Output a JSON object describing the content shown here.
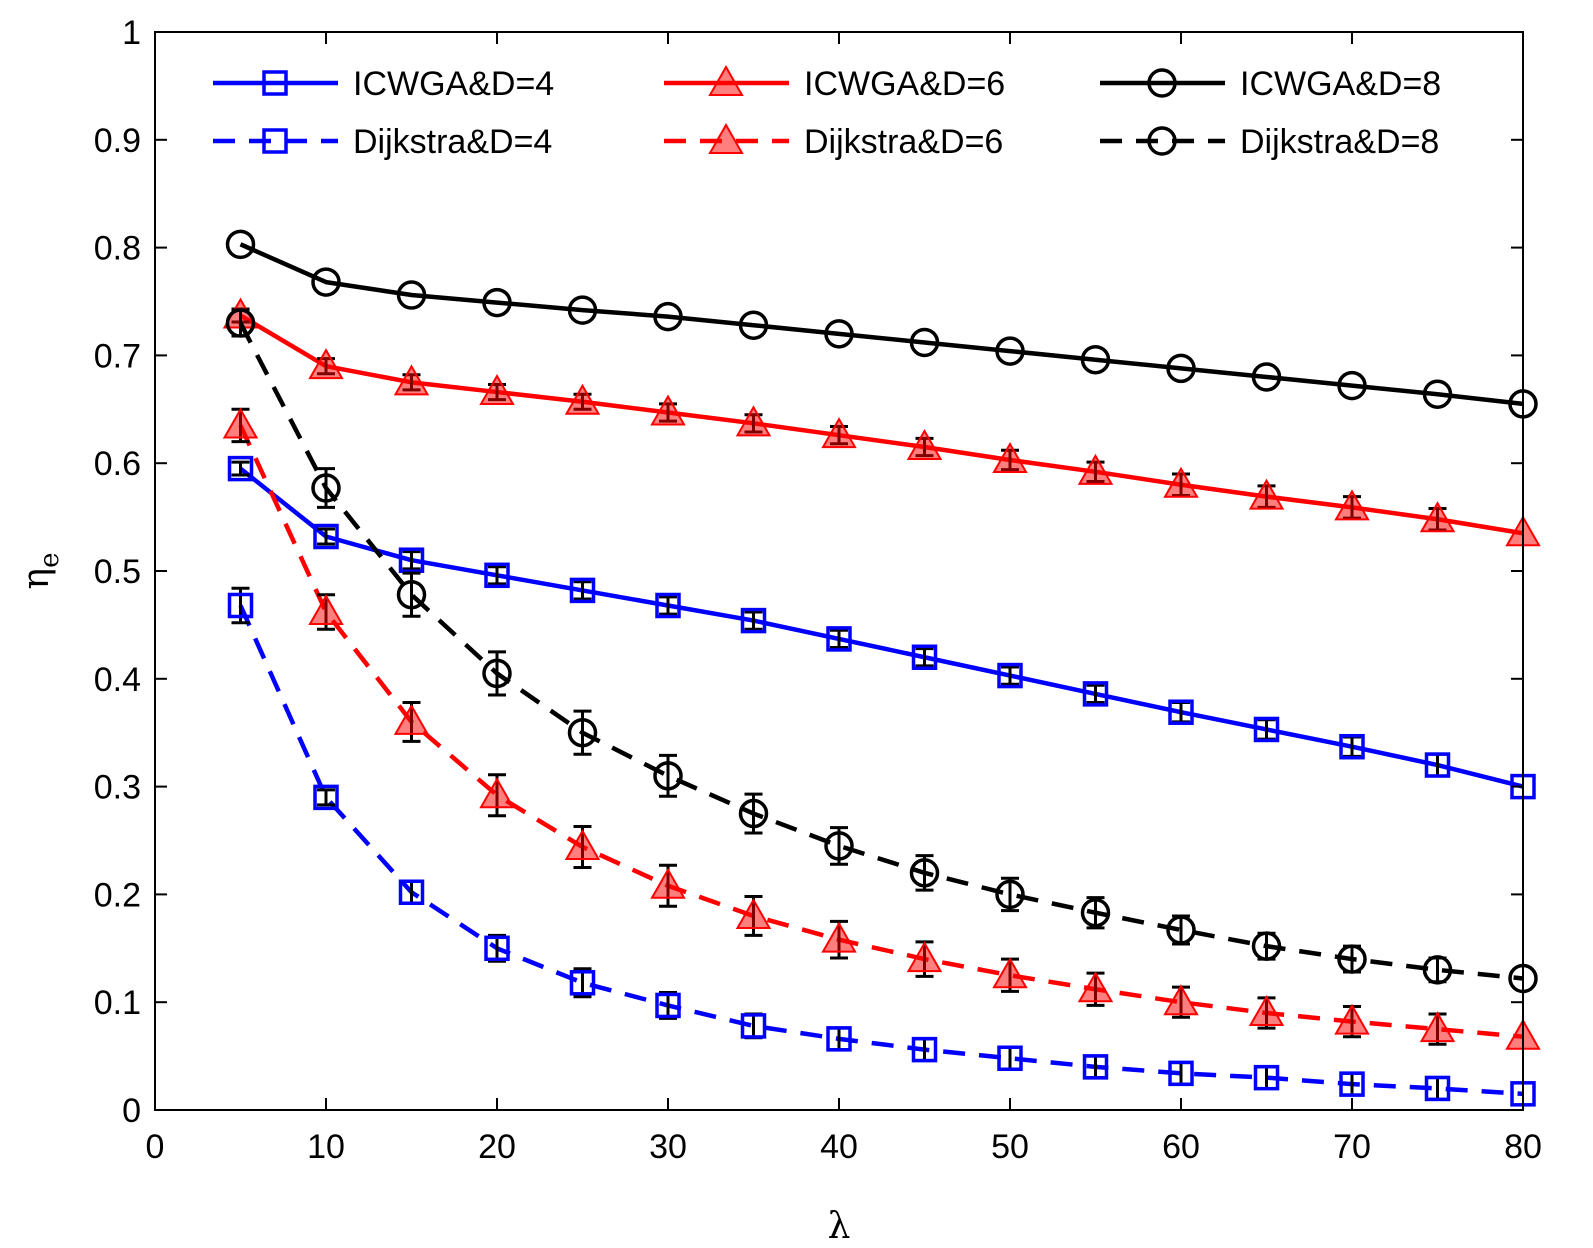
{
  "chart_data": {
    "type": "line",
    "title": "",
    "xlabel": "λ",
    "ylabel": "η",
    "ylabel_subscript": "e",
    "xlim": [
      0,
      80
    ],
    "ylim": [
      0,
      1
    ],
    "xticks": [
      0,
      10,
      20,
      30,
      40,
      50,
      60,
      70,
      80
    ],
    "yticks": [
      0,
      0.1,
      0.2,
      0.3,
      0.4,
      0.5,
      0.6,
      0.7,
      0.8,
      0.9,
      1
    ],
    "ytick_labels": [
      "0",
      "0.1",
      "0.2",
      "0.3",
      "0.4",
      "0.5",
      "0.6",
      "0.7",
      "0.8",
      "0.9",
      "1"
    ],
    "grid": false,
    "legend_position": "top",
    "x": [
      5,
      10,
      15,
      20,
      25,
      30,
      35,
      40,
      45,
      50,
      55,
      60,
      65,
      70,
      75,
      80
    ],
    "series": [
      {
        "name": "ICWGA&D=4",
        "color": "#0000ff",
        "dashed": false,
        "marker": "square",
        "values": [
          0.595,
          0.532,
          0.51,
          0.496,
          0.482,
          0.468,
          0.454,
          0.437,
          0.42,
          0.403,
          0.386,
          0.369,
          0.353,
          0.337,
          0.32,
          0.3
        ],
        "errors": [
          0.006,
          0.007,
          0.008,
          0.008,
          0.008,
          0.008,
          0.008,
          0.008,
          0.008,
          0.008,
          0.008,
          0.009,
          0.009,
          0.009,
          0.01,
          0
        ]
      },
      {
        "name": "Dijkstra&D=4",
        "color": "#0000ff",
        "dashed": true,
        "marker": "square",
        "values": [
          0.468,
          0.29,
          0.202,
          0.15,
          0.118,
          0.097,
          0.078,
          0.066,
          0.056,
          0.048,
          0.04,
          0.034,
          0.03,
          0.024,
          0.02,
          0.015
        ],
        "errors": [
          0.016,
          0.007,
          0.01,
          0.012,
          0.013,
          0.012,
          0.011,
          0.01,
          0.01,
          0.01,
          0.01,
          0.01,
          0.01,
          0.01,
          0.01,
          0
        ]
      },
      {
        "name": "ICWGA&D=6",
        "color": "#ff0000",
        "dashed": false,
        "marker": "triangle",
        "values": [
          0.737,
          0.69,
          0.675,
          0.666,
          0.657,
          0.647,
          0.637,
          0.626,
          0.615,
          0.603,
          0.592,
          0.58,
          0.569,
          0.559,
          0.548,
          0.535
        ],
        "errors": [
          0.006,
          0.007,
          0.007,
          0.007,
          0.007,
          0.008,
          0.008,
          0.008,
          0.008,
          0.009,
          0.009,
          0.01,
          0.01,
          0.01,
          0.01,
          0
        ]
      },
      {
        "name": "Dijkstra&D=6",
        "color": "#ff0000",
        "dashed": true,
        "marker": "triangle",
        "values": [
          0.635,
          0.462,
          0.36,
          0.292,
          0.244,
          0.208,
          0.18,
          0.158,
          0.14,
          0.125,
          0.112,
          0.1,
          0.09,
          0.082,
          0.075,
          0.068
        ],
        "errors": [
          0.015,
          0.016,
          0.018,
          0.019,
          0.019,
          0.019,
          0.018,
          0.017,
          0.016,
          0.015,
          0.015,
          0.014,
          0.014,
          0.014,
          0.014,
          0
        ]
      },
      {
        "name": "ICWGA&D=8",
        "color": "#000000",
        "dashed": false,
        "marker": "circle",
        "values": [
          0.803,
          0.768,
          0.756,
          0.749,
          0.742,
          0.736,
          0.728,
          0.72,
          0.712,
          0.704,
          0.696,
          0.688,
          0.68,
          0.672,
          0.664,
          0.655
        ],
        "errors": [
          0,
          0,
          0,
          0,
          0,
          0,
          0,
          0,
          0,
          0,
          0,
          0,
          0,
          0,
          0,
          0
        ]
      },
      {
        "name": "Dijkstra&D=8",
        "color": "#000000",
        "dashed": true,
        "marker": "circle",
        "values": [
          0.73,
          0.577,
          0.478,
          0.405,
          0.35,
          0.31,
          0.275,
          0.245,
          0.22,
          0.2,
          0.183,
          0.167,
          0.152,
          0.14,
          0.13,
          0.122
        ],
        "errors": [
          0.012,
          0.018,
          0.02,
          0.02,
          0.02,
          0.019,
          0.018,
          0.017,
          0.016,
          0.015,
          0.014,
          0.013,
          0.012,
          0.012,
          0.011,
          0
        ]
      }
    ],
    "legend_order": [
      [
        "ICWGA&D=4",
        "ICWGA&D=6",
        "ICWGA&D=8"
      ],
      [
        "Dijkstra&D=4",
        "Dijkstra&D=6",
        "Dijkstra&D=8"
      ]
    ]
  }
}
